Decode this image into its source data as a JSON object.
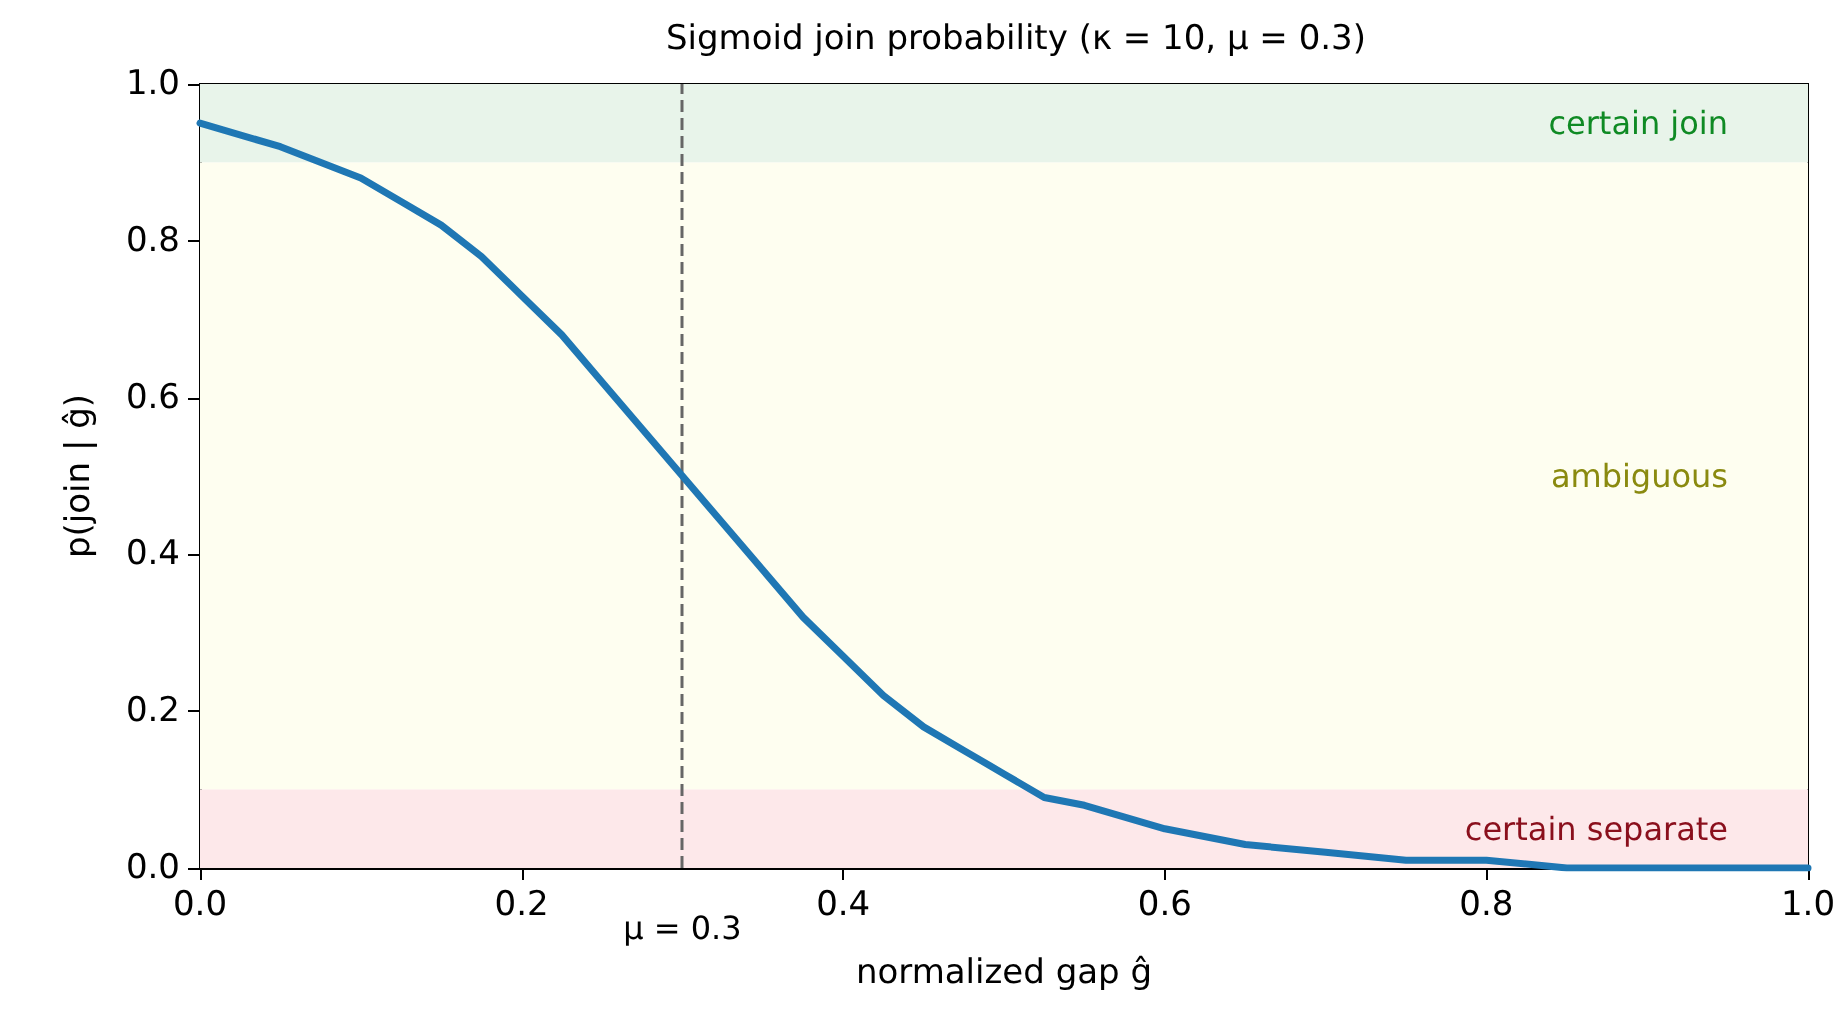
{
  "chart_data": {
    "type": "line",
    "title": "Sigmoid join probability (κ = 10, μ = 0.3)",
    "xlabel": "normalized gap ĝ",
    "ylabel": "p(join | ĝ)",
    "x": [
      0,
      0.05,
      0.1,
      0.125,
      0.15,
      0.175,
      0.2,
      0.225,
      0.25,
      0.275,
      0.3,
      0.325,
      0.35,
      0.375,
      0.4,
      0.425,
      0.45,
      0.475,
      0.5,
      0.525,
      0.55,
      0.6,
      0.65,
      0.7,
      0.75,
      0.8,
      0.85,
      0.9,
      0.95,
      1.0
    ],
    "series": [
      {
        "color": "#1f77b4",
        "values": [
          0.95,
          0.92,
          0.88,
          0.85,
          0.82,
          0.78,
          0.73,
          0.68,
          0.62,
          0.56,
          0.5,
          0.44,
          0.38,
          0.32,
          0.27,
          0.22,
          0.18,
          0.15,
          0.12,
          0.09,
          0.08,
          0.05,
          0.03,
          0.02,
          0.01,
          0.01,
          0,
          0,
          0,
          0
        ]
      }
    ],
    "xlim": [
      0,
      1
    ],
    "ylim": [
      0,
      1
    ],
    "xticks": [
      {
        "value": 0,
        "label": "0.0"
      },
      {
        "value": 0.2,
        "label": "0.2"
      },
      {
        "value": 0.4,
        "label": "0.4"
      },
      {
        "value": 0.6,
        "label": "0.6"
      },
      {
        "value": 0.8,
        "label": "0.8"
      },
      {
        "value": 1,
        "label": "1.0"
      }
    ],
    "yticks": [
      {
        "value": 0,
        "label": "0.0"
      },
      {
        "value": 0.2,
        "label": "0.2"
      },
      {
        "value": 0.4,
        "label": "0.4"
      },
      {
        "value": 0.6,
        "label": "0.6"
      },
      {
        "value": 0.8,
        "label": "0.8"
      },
      {
        "value": 1,
        "label": "1.0"
      }
    ],
    "bands": [
      {
        "axis": "y",
        "from": 0.9,
        "to": 1.0,
        "label": "certain join",
        "color": "#e8f4ea"
      },
      {
        "axis": "y",
        "from": 0.1,
        "to": 0.9,
        "label": "ambiguous",
        "color": "#fefef0"
      },
      {
        "axis": "y",
        "from": 0,
        "to": 0.1,
        "label": "certain separate",
        "color": "#fde8ea"
      }
    ],
    "ref_lines": [
      {
        "axis": "x",
        "value": 0.3,
        "label": "μ = 0.3",
        "color": "#666666",
        "line_style": "dashed"
      }
    ],
    "grid": false,
    "marker": "none",
    "line_style": "solid"
  }
}
